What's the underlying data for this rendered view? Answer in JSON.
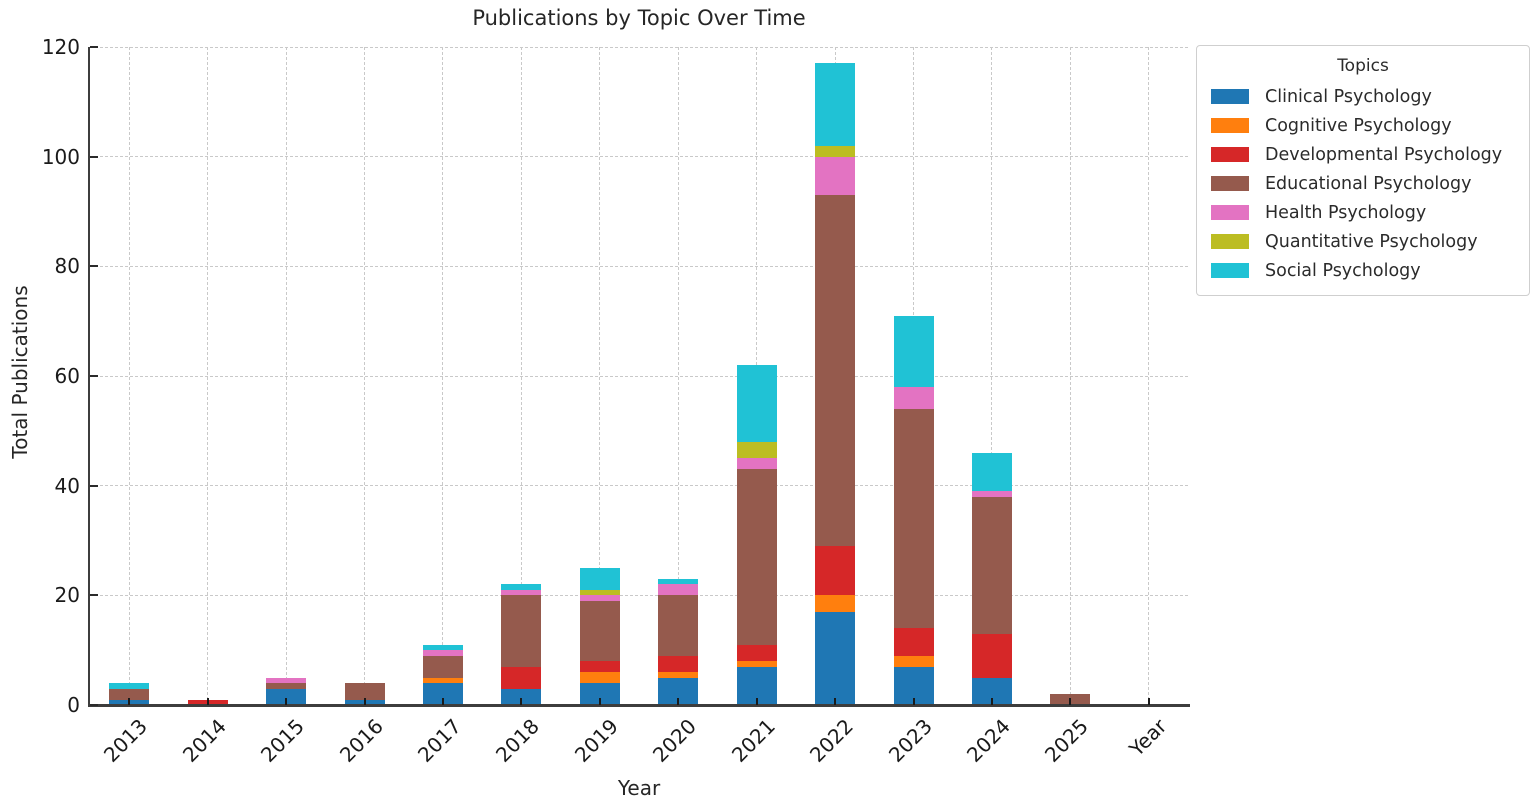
{
  "chart_data": {
    "type": "bar",
    "stacked": true,
    "title": "Publications by Topic Over Time",
    "xlabel": "Year",
    "ylabel": "Total Publications",
    "legend_title": "Topics",
    "legend_position": "upper right outside plot",
    "grid": true,
    "ylim": [
      0,
      120
    ],
    "yticks": [
      0,
      20,
      40,
      60,
      80,
      100,
      120
    ],
    "categories": [
      "2013",
      "2014",
      "2015",
      "2016",
      "2017",
      "2018",
      "2019",
      "2020",
      "2021",
      "2022",
      "2023",
      "2024",
      "2025",
      "Year"
    ],
    "series": [
      {
        "name": "Clinical Psychology",
        "color": "#1f77b4",
        "values": [
          1,
          0,
          3,
          1,
          4,
          3,
          4,
          5,
          7,
          17,
          7,
          5,
          0,
          0
        ]
      },
      {
        "name": "Cognitive Psychology",
        "color": "#ff7f0e",
        "values": [
          0,
          0,
          0,
          0,
          1,
          0,
          2,
          1,
          1,
          3,
          2,
          0,
          0,
          0
        ]
      },
      {
        "name": "Developmental Psychology",
        "color": "#d62728",
        "values": [
          0,
          1,
          0,
          0,
          0,
          4,
          2,
          3,
          3,
          9,
          5,
          8,
          0,
          0
        ]
      },
      {
        "name": "Educational Psychology",
        "color": "#955a4d",
        "values": [
          2,
          0,
          1,
          3,
          4,
          13,
          11,
          11,
          32,
          64,
          40,
          25,
          2,
          0
        ]
      },
      {
        "name": "Health Psychology",
        "color": "#e373c2",
        "values": [
          0,
          0,
          1,
          0,
          1,
          1,
          1,
          2,
          2,
          7,
          4,
          1,
          0,
          0
        ]
      },
      {
        "name": "Quantitative Psychology",
        "color": "#bcbd22",
        "values": [
          0,
          0,
          0,
          0,
          0,
          0,
          1,
          0,
          3,
          2,
          0,
          0,
          0,
          0
        ]
      },
      {
        "name": "Social Psychology",
        "color": "#20c2d5",
        "values": [
          1,
          0,
          0,
          0,
          1,
          1,
          4,
          1,
          14,
          15,
          13,
          7,
          0,
          0
        ]
      }
    ],
    "totals": [
      4,
      1,
      5,
      4,
      11,
      22,
      25,
      23,
      62,
      117,
      71,
      46,
      2,
      0
    ]
  }
}
